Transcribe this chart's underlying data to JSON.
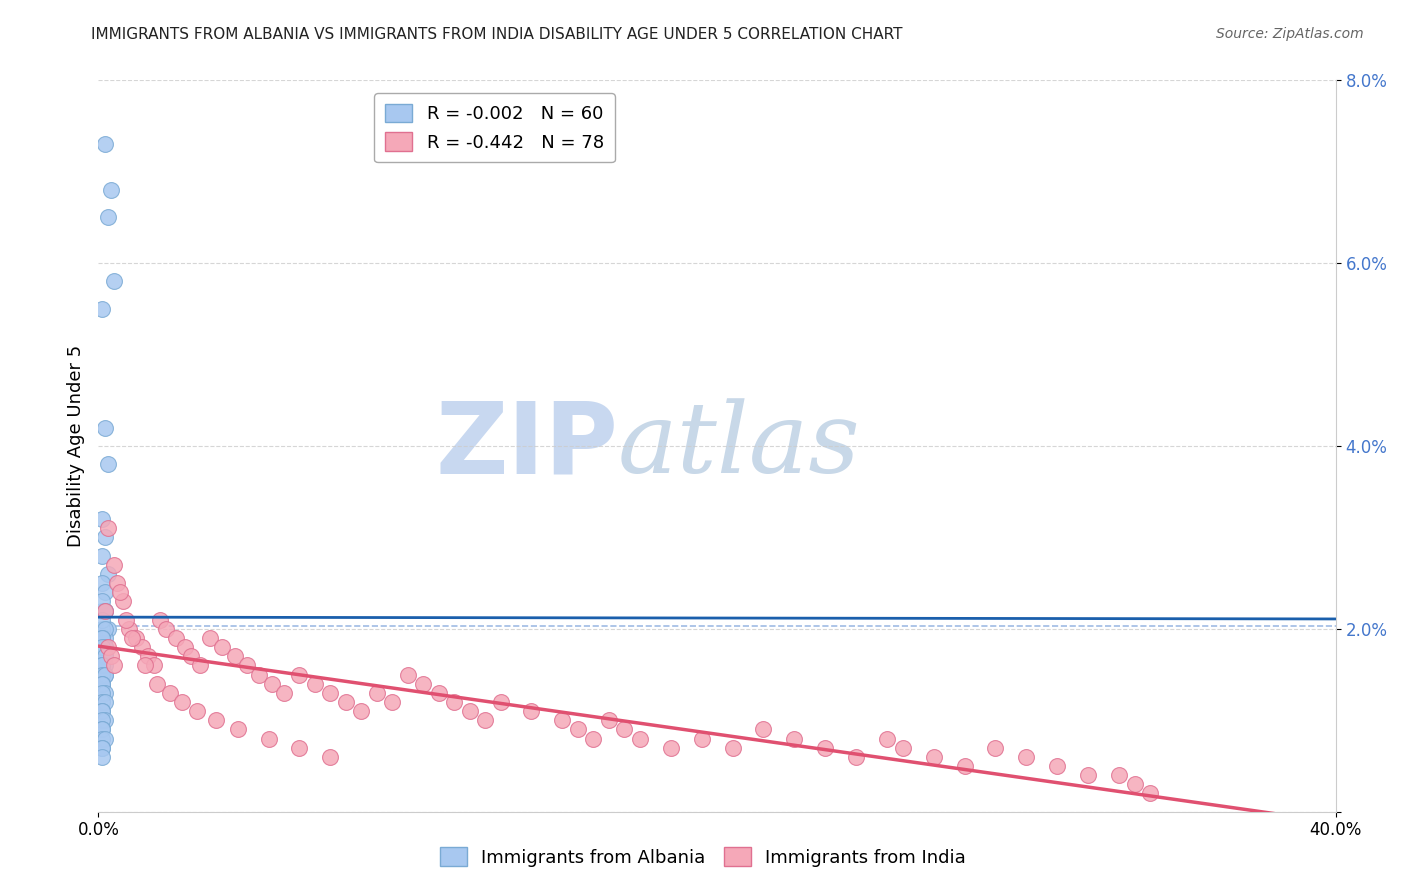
{
  "title": "IMMIGRANTS FROM ALBANIA VS IMMIGRANTS FROM INDIA DISABILITY AGE UNDER 5 CORRELATION CHART",
  "source": "Source: ZipAtlas.com",
  "ylabel": "Disability Age Under 5",
  "albania_color": "#a8c8f0",
  "albania_edge": "#7aaad4",
  "india_color": "#f5a8b8",
  "india_edge": "#e07090",
  "albania_line_color": "#1a5fac",
  "india_line_color": "#e05070",
  "background_color": "#ffffff",
  "grid_color": "#cccccc",
  "watermark_zip": "ZIP",
  "watermark_atlas": "atlas",
  "watermark_zip_color": "#c8d8f0",
  "watermark_atlas_color": "#c8d8e8",
  "dashed_line_color": "#88aadd",
  "tick_color": "#4477cc",
  "xlim": [
    0.0,
    0.4
  ],
  "ylim": [
    0.0,
    0.08
  ],
  "ytick_vals": [
    0.0,
    0.02,
    0.04,
    0.06,
    0.08
  ],
  "ytick_labels": [
    "",
    "2.0%",
    "4.0%",
    "6.0%",
    "8.0%"
  ],
  "xtick_left_label": "0.0%",
  "xtick_right_label": "40.0%",
  "legend_r_albania": "R = -0.002",
  "legend_n_albania": "N = 60",
  "legend_r_india": "R = -0.442",
  "legend_n_india": "N = 78",
  "albania_x": [
    0.002,
    0.004,
    0.003,
    0.005,
    0.001,
    0.002,
    0.003,
    0.001,
    0.002,
    0.001,
    0.003,
    0.001,
    0.002,
    0.001,
    0.002,
    0.003,
    0.001,
    0.002,
    0.001,
    0.002,
    0.001,
    0.002,
    0.001,
    0.002,
    0.001,
    0.002,
    0.001,
    0.002,
    0.001,
    0.001,
    0.001,
    0.002,
    0.001,
    0.002,
    0.001,
    0.001,
    0.002,
    0.001,
    0.002,
    0.001,
    0.001,
    0.001,
    0.002,
    0.001,
    0.001,
    0.002,
    0.001,
    0.001,
    0.002,
    0.001,
    0.001,
    0.002,
    0.001,
    0.001,
    0.001,
    0.001,
    0.002,
    0.001,
    0.001,
    0.001
  ],
  "albania_y": [
    0.073,
    0.068,
    0.065,
    0.058,
    0.055,
    0.042,
    0.038,
    0.032,
    0.03,
    0.028,
    0.026,
    0.025,
    0.024,
    0.022,
    0.022,
    0.02,
    0.02,
    0.019,
    0.019,
    0.018,
    0.018,
    0.018,
    0.017,
    0.017,
    0.016,
    0.016,
    0.015,
    0.015,
    0.014,
    0.014,
    0.023,
    0.022,
    0.021,
    0.02,
    0.019,
    0.019,
    0.018,
    0.018,
    0.017,
    0.016,
    0.016,
    0.015,
    0.015,
    0.014,
    0.014,
    0.013,
    0.013,
    0.012,
    0.012,
    0.011,
    0.011,
    0.01,
    0.01,
    0.009,
    0.009,
    0.008,
    0.008,
    0.007,
    0.007,
    0.006
  ],
  "india_x": [
    0.002,
    0.003,
    0.004,
    0.005,
    0.006,
    0.008,
    0.01,
    0.012,
    0.014,
    0.016,
    0.018,
    0.02,
    0.022,
    0.025,
    0.028,
    0.03,
    0.033,
    0.036,
    0.04,
    0.044,
    0.048,
    0.052,
    0.056,
    0.06,
    0.065,
    0.07,
    0.075,
    0.08,
    0.085,
    0.09,
    0.095,
    0.1,
    0.105,
    0.11,
    0.115,
    0.12,
    0.125,
    0.13,
    0.14,
    0.15,
    0.155,
    0.16,
    0.165,
    0.17,
    0.175,
    0.185,
    0.195,
    0.205,
    0.215,
    0.225,
    0.235,
    0.245,
    0.255,
    0.26,
    0.27,
    0.28,
    0.29,
    0.3,
    0.31,
    0.32,
    0.003,
    0.005,
    0.007,
    0.009,
    0.011,
    0.015,
    0.019,
    0.023,
    0.027,
    0.032,
    0.038,
    0.045,
    0.055,
    0.065,
    0.075,
    0.33,
    0.335,
    0.34
  ],
  "india_y": [
    0.022,
    0.018,
    0.017,
    0.016,
    0.025,
    0.023,
    0.02,
    0.019,
    0.018,
    0.017,
    0.016,
    0.021,
    0.02,
    0.019,
    0.018,
    0.017,
    0.016,
    0.019,
    0.018,
    0.017,
    0.016,
    0.015,
    0.014,
    0.013,
    0.015,
    0.014,
    0.013,
    0.012,
    0.011,
    0.013,
    0.012,
    0.015,
    0.014,
    0.013,
    0.012,
    0.011,
    0.01,
    0.012,
    0.011,
    0.01,
    0.009,
    0.008,
    0.01,
    0.009,
    0.008,
    0.007,
    0.008,
    0.007,
    0.009,
    0.008,
    0.007,
    0.006,
    0.008,
    0.007,
    0.006,
    0.005,
    0.007,
    0.006,
    0.005,
    0.004,
    0.031,
    0.027,
    0.024,
    0.021,
    0.019,
    0.016,
    0.014,
    0.013,
    0.012,
    0.011,
    0.01,
    0.009,
    0.008,
    0.007,
    0.006,
    0.004,
    0.003,
    0.002
  ]
}
